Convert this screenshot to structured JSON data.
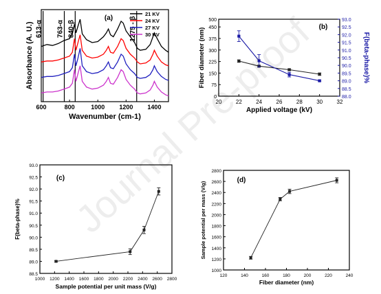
{
  "watermark": "Journal Pre-proof",
  "chart_data": [
    {
      "id": "a",
      "panel_label": "(a)",
      "type": "line",
      "title": "",
      "xlabel": "Wavenumber (cm-1)",
      "ylabel": "Absorbance (A. U.)",
      "xlim": [
        600,
        1500
      ],
      "xticks": [
        600,
        800,
        1000,
        1200,
        1400
      ],
      "legend": "top-right",
      "annotations": [
        {
          "text": "613-α",
          "x": 613
        },
        {
          "text": "763-α",
          "x": 763
        },
        {
          "text": "840-β",
          "x": 840
        },
        {
          "text": "1275 - β",
          "x": 1275
        }
      ],
      "series": [
        {
          "name": "21 KV",
          "color": "#000000",
          "x": [
            600,
            640,
            680,
            720,
            760,
            800,
            820,
            835,
            845,
            860,
            875,
            890,
            920,
            960,
            1000,
            1040,
            1060,
            1075,
            1090,
            1110,
            1140,
            1165,
            1180,
            1200,
            1230,
            1260,
            1280,
            1300,
            1340,
            1370,
            1390,
            1400,
            1420,
            1450,
            1480,
            1500
          ],
          "y": [
            0.72,
            0.74,
            0.73,
            0.75,
            0.78,
            0.8,
            0.85,
            0.95,
            0.86,
            0.93,
            1.0,
            0.85,
            0.79,
            0.76,
            0.77,
            0.82,
            0.86,
            0.9,
            0.84,
            0.82,
            0.9,
            0.98,
            0.96,
            0.88,
            0.82,
            0.76,
            0.7,
            0.68,
            0.69,
            0.74,
            0.82,
            0.86,
            0.8,
            0.72,
            0.68,
            0.66
          ]
        },
        {
          "name": "24 KV",
          "color": "#ff0000",
          "x": [
            600,
            640,
            680,
            720,
            760,
            800,
            820,
            835,
            845,
            860,
            875,
            890,
            920,
            960,
            1000,
            1040,
            1060,
            1075,
            1090,
            1110,
            1140,
            1165,
            1180,
            1200,
            1230,
            1260,
            1280,
            1300,
            1340,
            1370,
            1390,
            1400,
            1420,
            1450,
            1480,
            1500
          ],
          "y": [
            0.56,
            0.57,
            0.57,
            0.58,
            0.6,
            0.62,
            0.66,
            0.8,
            0.68,
            0.76,
            0.84,
            0.68,
            0.62,
            0.6,
            0.61,
            0.64,
            0.68,
            0.72,
            0.66,
            0.65,
            0.72,
            0.8,
            0.78,
            0.7,
            0.64,
            0.6,
            0.56,
            0.54,
            0.55,
            0.58,
            0.64,
            0.68,
            0.62,
            0.56,
            0.53,
            0.52
          ]
        },
        {
          "name": "27 KV",
          "color": "#1f1fbf",
          "x": [
            600,
            640,
            680,
            720,
            760,
            800,
            820,
            835,
            845,
            860,
            875,
            890,
            920,
            960,
            1000,
            1040,
            1060,
            1075,
            1090,
            1110,
            1140,
            1165,
            1180,
            1200,
            1230,
            1260,
            1280,
            1300,
            1340,
            1370,
            1390,
            1400,
            1420,
            1450,
            1480,
            1500
          ],
          "y": [
            0.4,
            0.41,
            0.41,
            0.42,
            0.44,
            0.46,
            0.5,
            0.64,
            0.52,
            0.6,
            0.7,
            0.52,
            0.46,
            0.44,
            0.45,
            0.48,
            0.52,
            0.56,
            0.5,
            0.49,
            0.56,
            0.64,
            0.62,
            0.54,
            0.48,
            0.44,
            0.4,
            0.39,
            0.4,
            0.43,
            0.48,
            0.52,
            0.46,
            0.41,
            0.38,
            0.37
          ]
        },
        {
          "name": "30 KV",
          "color": "#cc33cc",
          "x": [
            600,
            640,
            680,
            720,
            760,
            800,
            820,
            835,
            845,
            860,
            875,
            890,
            920,
            960,
            1000,
            1040,
            1060,
            1075,
            1090,
            1110,
            1140,
            1165,
            1180,
            1200,
            1230,
            1260,
            1280,
            1300,
            1340,
            1370,
            1390,
            1400,
            1420,
            1450,
            1480,
            1500
          ],
          "y": [
            0.24,
            0.25,
            0.25,
            0.26,
            0.28,
            0.3,
            0.34,
            0.48,
            0.36,
            0.44,
            0.52,
            0.36,
            0.3,
            0.28,
            0.29,
            0.32,
            0.36,
            0.4,
            0.34,
            0.33,
            0.4,
            0.48,
            0.46,
            0.38,
            0.32,
            0.28,
            0.24,
            0.23,
            0.24,
            0.27,
            0.32,
            0.36,
            0.3,
            0.25,
            0.22,
            0.21
          ]
        }
      ]
    },
    {
      "id": "b",
      "panel_label": "(b)",
      "type": "line",
      "title": "",
      "xlabel": "Applied voltage (kV)",
      "ylabel": "Fiber diameter (nm)",
      "y2label": "F(beta-phase)%",
      "xlim": [
        20,
        32
      ],
      "xticks": [
        20,
        22,
        24,
        26,
        28,
        30,
        32
      ],
      "ylim": [
        0,
        500
      ],
      "yticks": [
        0,
        75,
        150,
        225,
        300,
        375,
        450,
        500
      ],
      "ytick_labels": [
        "0",
        "75",
        "150",
        "225",
        "300",
        "375",
        "450",
        "500"
      ],
      "y2lim": [
        88.0,
        93.0
      ],
      "y2ticks": [
        88.0,
        88.5,
        89.0,
        89.5,
        90.0,
        90.5,
        91.0,
        91.5,
        92.0,
        92.5,
        93.0
      ],
      "y2_color": "#1a1aa6",
      "series": [
        {
          "name": "Fiber diameter",
          "axis": "left",
          "color": "#222222",
          "marker": "square",
          "x": [
            22,
            24,
            27,
            30
          ],
          "y": [
            228,
            195,
            172,
            143
          ],
          "err": [
            8,
            6,
            6,
            8
          ]
        },
        {
          "name": "F(beta-phase)",
          "axis": "right",
          "color": "#1a1aa6",
          "marker": "square",
          "x": [
            22,
            24,
            27,
            30
          ],
          "y": [
            91.9,
            90.3,
            89.4,
            89.0
          ],
          "err": [
            0.35,
            0.4,
            0.15,
            0.05
          ]
        }
      ]
    },
    {
      "id": "c",
      "panel_label": "(c)",
      "type": "line",
      "title": "",
      "xlabel": "Sample potential per unit mass (V/g)",
      "ylabel": "F(beta-phase)%",
      "xlim": [
        1000,
        2800
      ],
      "xticks": [
        1000,
        1200,
        1400,
        1600,
        1800,
        2000,
        2200,
        2400,
        2600,
        2800
      ],
      "ylim": [
        88.5,
        93.0
      ],
      "yticks": [
        88.5,
        89.0,
        89.5,
        90.0,
        90.5,
        91.0,
        91.5,
        92.0,
        92.5,
        93.0
      ],
      "series": [
        {
          "name": "",
          "color": "#222222",
          "marker": "square",
          "x": [
            1220,
            2230,
            2420,
            2620
          ],
          "y": [
            89.0,
            89.4,
            90.3,
            91.9
          ],
          "err": [
            0.03,
            0.12,
            0.15,
            0.15
          ]
        }
      ]
    },
    {
      "id": "d",
      "panel_label": "(d)",
      "type": "line",
      "title": "",
      "xlabel": "Fiber diameter (nm)",
      "ylabel": "Sample potential per mass (V/g)",
      "xlim": [
        120,
        240
      ],
      "xticks": [
        120,
        140,
        160,
        180,
        200,
        220,
        240
      ],
      "ylim": [
        1000,
        2800
      ],
      "yticks": [
        1000,
        1200,
        1400,
        1600,
        1800,
        2000,
        2200,
        2400,
        2600,
        2800
      ],
      "series": [
        {
          "name": "",
          "color": "#222222",
          "marker": "square",
          "x": [
            146,
            174,
            183,
            228
          ],
          "y": [
            1220,
            2280,
            2420,
            2620
          ],
          "err": [
            25,
            30,
            40,
            45
          ]
        }
      ]
    }
  ]
}
